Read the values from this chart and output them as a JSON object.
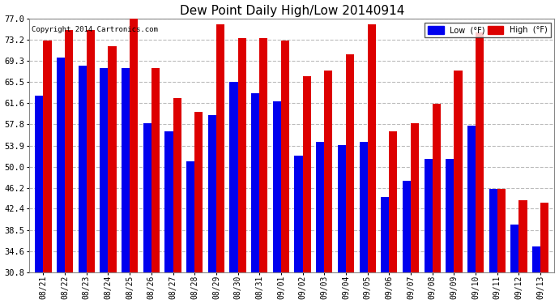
{
  "title": "Dew Point Daily High/Low 20140914",
  "copyright": "Copyright 2014 Cartronics.com",
  "dates": [
    "08/21",
    "08/22",
    "08/23",
    "08/24",
    "08/25",
    "08/26",
    "08/27",
    "08/28",
    "08/29",
    "08/30",
    "08/31",
    "09/01",
    "09/02",
    "09/03",
    "09/04",
    "09/05",
    "09/06",
    "09/07",
    "09/08",
    "09/09",
    "09/10",
    "09/11",
    "09/12",
    "09/13"
  ],
  "low": [
    63.0,
    70.0,
    68.5,
    68.0,
    68.0,
    58.0,
    56.5,
    51.0,
    59.5,
    65.5,
    63.5,
    62.0,
    52.0,
    54.5,
    54.0,
    54.5,
    44.5,
    47.5,
    51.5,
    51.5,
    57.5,
    46.0,
    39.5,
    35.5
  ],
  "high": [
    73.0,
    75.0,
    75.0,
    72.0,
    77.0,
    68.0,
    62.5,
    60.0,
    76.0,
    73.5,
    73.5,
    73.0,
    66.5,
    67.5,
    70.5,
    76.0,
    56.5,
    58.0,
    61.5,
    67.5,
    74.5,
    46.0,
    44.0,
    43.5
  ],
  "low_color": "#0000ee",
  "high_color": "#dd0000",
  "bg_color": "#ffffff",
  "grid_color": "#bbbbbb",
  "yticks": [
    30.8,
    34.6,
    38.5,
    42.4,
    46.2,
    50.0,
    53.9,
    57.8,
    61.6,
    65.5,
    69.3,
    73.2,
    77.0
  ],
  "ymin": 30.8,
  "ymax": 77.0,
  "bar_bottom": 30.8
}
